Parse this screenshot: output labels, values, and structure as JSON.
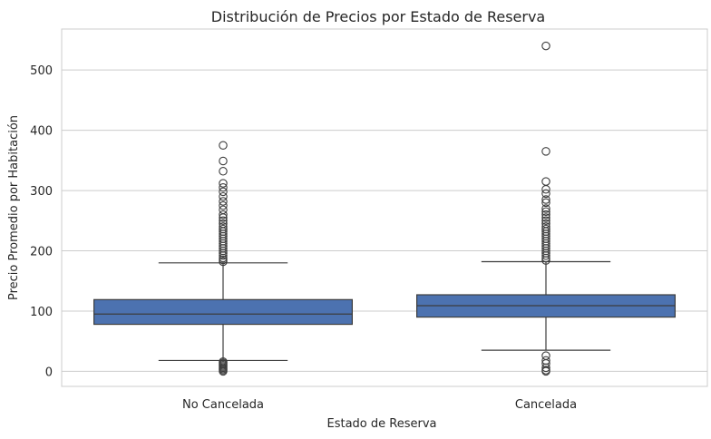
{
  "chart_data": {
    "type": "box",
    "title": "Distribución de Precios por Estado de Reserva",
    "xlabel": "Estado de Reserva",
    "ylabel": "Precio Promedio por Habitación",
    "categories": [
      "No Cancelada",
      "Cancelada"
    ],
    "ylim": [
      -25,
      568
    ],
    "yticks": [
      0,
      100,
      200,
      300,
      400,
      500
    ],
    "grid": true,
    "box_color": "#4c72b0",
    "line_color": "#3d3d3d",
    "boxes": [
      {
        "category": "No Cancelada",
        "whisker_low": 18,
        "q1": 78,
        "median": 95,
        "q3": 119,
        "whisker_high": 180,
        "outliers": [
          0,
          2,
          4,
          6,
          8,
          10,
          12,
          14,
          16,
          182,
          185,
          188,
          192,
          196,
          200,
          204,
          208,
          212,
          216,
          220,
          224,
          228,
          232,
          236,
          240,
          245,
          250,
          255,
          260,
          268,
          275,
          282,
          290,
          298,
          305,
          312,
          332,
          349,
          375
        ]
      },
      {
        "category": "Cancelada",
        "whisker_low": 35,
        "q1": 90,
        "median": 109,
        "q3": 127,
        "whisker_high": 182,
        "outliers": [
          0,
          2,
          6,
          13,
          18,
          26,
          184,
          188,
          192,
          196,
          200,
          204,
          208,
          212,
          216,
          220,
          224,
          228,
          232,
          236,
          240,
          245,
          250,
          255,
          260,
          265,
          270,
          280,
          285,
          295,
          302,
          315,
          365,
          540
        ]
      }
    ]
  }
}
